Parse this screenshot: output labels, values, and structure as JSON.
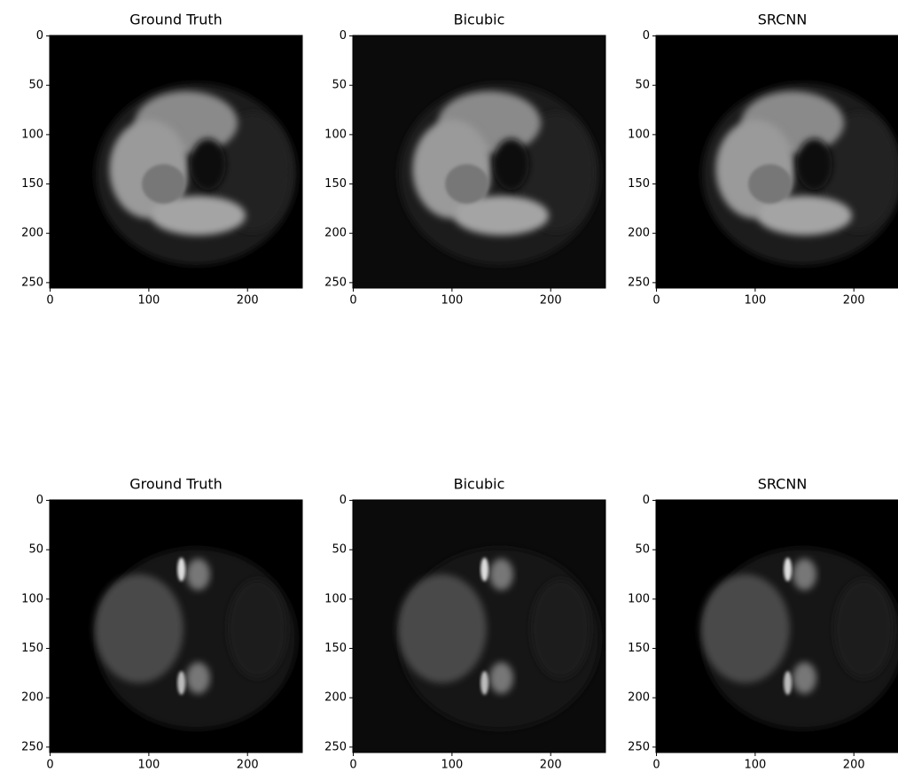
{
  "chart_data": [
    {
      "type": "image",
      "title": "Ground Truth",
      "xlim": [
        -0.5,
        255.5
      ],
      "ylim": [
        255.5,
        -0.5
      ],
      "xticks": [
        0,
        100,
        200
      ],
      "yticks": [
        0,
        50,
        100,
        150,
        200,
        250
      ]
    },
    {
      "type": "image",
      "title": "Bicubic",
      "xlim": [
        -0.5,
        255.5
      ],
      "ylim": [
        255.5,
        -0.5
      ],
      "xticks": [
        0,
        100,
        200
      ],
      "yticks": [
        0,
        50,
        100,
        150,
        200,
        250
      ]
    },
    {
      "type": "image",
      "title": "SRCNN",
      "xlim": [
        -0.5,
        255.5
      ],
      "ylim": [
        255.5,
        -0.5
      ],
      "xticks": [
        0,
        100,
        200
      ],
      "yticks": [
        0,
        50,
        100,
        150,
        200,
        250
      ]
    },
    {
      "type": "image",
      "title": "Ground Truth",
      "xlim": [
        -0.5,
        255.5
      ],
      "ylim": [
        255.5,
        -0.5
      ],
      "xticks": [
        0,
        100,
        200
      ],
      "yticks": [
        0,
        50,
        100,
        150,
        200,
        250
      ]
    },
    {
      "type": "image",
      "title": "Bicubic",
      "xlim": [
        -0.5,
        255.5
      ],
      "ylim": [
        255.5,
        -0.5
      ],
      "xticks": [
        0,
        100,
        200
      ],
      "yticks": [
        0,
        50,
        100,
        150,
        200,
        250
      ]
    },
    {
      "type": "image",
      "title": "SRCNN",
      "xlim": [
        -0.5,
        255.5
      ],
      "ylim": [
        255.5,
        -0.5
      ],
      "xticks": [
        0,
        100,
        200
      ],
      "yticks": [
        0,
        50,
        100,
        150,
        200,
        250
      ]
    }
  ]
}
